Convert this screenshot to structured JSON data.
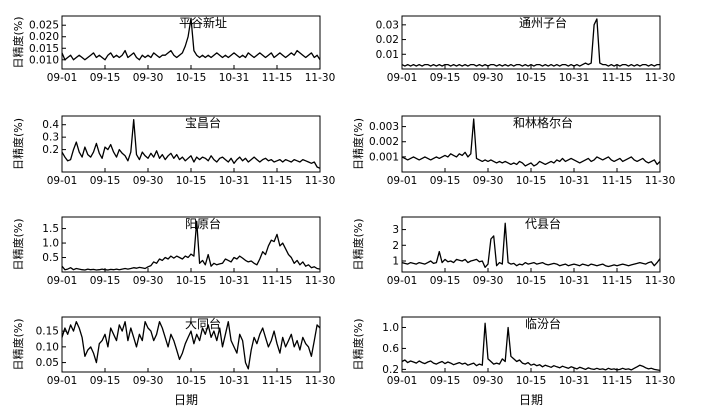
{
  "figure": {
    "xlabel": "日期"
  },
  "chart_data": [
    {
      "type": "line",
      "title": "平谷新址",
      "xlabel": "",
      "ylabel": "日精度(%)",
      "xticks": [
        "09-01",
        "09-15",
        "09-30",
        "10-15",
        "10-31",
        "11-15",
        "11-30"
      ],
      "yticks": [
        "0.010",
        "0.015",
        "0.020",
        "0.025"
      ],
      "ytick_values": [
        0.01,
        0.015,
        0.02,
        0.025
      ],
      "ylim": [
        0.006,
        0.029
      ],
      "x_start": "09-01",
      "x_end": "11-30",
      "values": [
        0.013,
        0.01,
        0.011,
        0.012,
        0.01,
        0.011,
        0.012,
        0.011,
        0.01,
        0.011,
        0.012,
        0.013,
        0.011,
        0.012,
        0.011,
        0.01,
        0.012,
        0.013,
        0.011,
        0.012,
        0.011,
        0.012,
        0.014,
        0.011,
        0.012,
        0.013,
        0.011,
        0.01,
        0.012,
        0.011,
        0.012,
        0.011,
        0.013,
        0.012,
        0.011,
        0.012,
        0.012,
        0.013,
        0.014,
        0.012,
        0.011,
        0.012,
        0.013,
        0.016,
        0.02,
        0.028,
        0.014,
        0.012,
        0.011,
        0.012,
        0.011,
        0.012,
        0.011,
        0.012,
        0.013,
        0.012,
        0.011,
        0.012,
        0.011,
        0.012,
        0.013,
        0.012,
        0.011,
        0.012,
        0.011,
        0.013,
        0.012,
        0.011,
        0.012,
        0.013,
        0.012,
        0.011,
        0.012,
        0.013,
        0.011,
        0.012,
        0.013,
        0.012,
        0.011,
        0.012,
        0.013,
        0.012,
        0.014,
        0.013,
        0.012,
        0.011,
        0.012,
        0.013,
        0.011,
        0.012,
        0.01
      ]
    },
    {
      "type": "line",
      "title": "通州子台",
      "xlabel": "",
      "ylabel": "",
      "xticks": [
        "09-01",
        "09-15",
        "09-30",
        "10-15",
        "10-31",
        "11-15",
        "11-30"
      ],
      "yticks": [
        "0.01",
        "0.02",
        "0.03"
      ],
      "ytick_values": [
        0.01,
        0.02,
        0.03
      ],
      "ylim": [
        0.0,
        0.036
      ],
      "x_start": "09-01",
      "x_end": "11-30",
      "values": [
        0.003,
        0.002,
        0.003,
        0.002,
        0.003,
        0.002,
        0.003,
        0.002,
        0.003,
        0.003,
        0.002,
        0.003,
        0.002,
        0.003,
        0.002,
        0.003,
        0.003,
        0.002,
        0.003,
        0.002,
        0.003,
        0.002,
        0.003,
        0.002,
        0.003,
        0.003,
        0.002,
        0.003,
        0.002,
        0.003,
        0.002,
        0.003,
        0.003,
        0.002,
        0.003,
        0.002,
        0.003,
        0.002,
        0.003,
        0.002,
        0.003,
        0.003,
        0.002,
        0.003,
        0.002,
        0.003,
        0.002,
        0.003,
        0.003,
        0.002,
        0.003,
        0.002,
        0.003,
        0.002,
        0.003,
        0.002,
        0.003,
        0.003,
        0.002,
        0.003,
        0.002,
        0.003,
        0.002,
        0.003,
        0.004,
        0.003,
        0.004,
        0.03,
        0.034,
        0.004,
        0.003,
        0.003,
        0.002,
        0.003,
        0.002,
        0.003,
        0.002,
        0.003,
        0.003,
        0.002,
        0.003,
        0.002,
        0.003,
        0.002,
        0.003,
        0.003,
        0.002,
        0.003,
        0.002,
        0.003,
        0.003
      ]
    },
    {
      "type": "line",
      "title": "宝昌台",
      "xlabel": "",
      "ylabel": "日精度(%)",
      "xticks": [
        "09-01",
        "09-15",
        "09-30",
        "10-15",
        "10-31",
        "11-15",
        "11-30"
      ],
      "yticks": [
        "0.2",
        "0.3",
        "0.4"
      ],
      "ytick_values": [
        0.2,
        0.3,
        0.4
      ],
      "ylim": [
        0.02,
        0.47
      ],
      "x_start": "09-01",
      "x_end": "11-30",
      "values": [
        0.18,
        0.14,
        0.11,
        0.12,
        0.2,
        0.26,
        0.18,
        0.14,
        0.22,
        0.16,
        0.14,
        0.18,
        0.25,
        0.17,
        0.13,
        0.22,
        0.2,
        0.24,
        0.18,
        0.14,
        0.2,
        0.17,
        0.15,
        0.11,
        0.18,
        0.44,
        0.16,
        0.12,
        0.18,
        0.15,
        0.13,
        0.17,
        0.14,
        0.19,
        0.13,
        0.16,
        0.12,
        0.15,
        0.17,
        0.13,
        0.16,
        0.12,
        0.14,
        0.11,
        0.13,
        0.15,
        0.1,
        0.14,
        0.12,
        0.14,
        0.13,
        0.11,
        0.15,
        0.12,
        0.1,
        0.13,
        0.14,
        0.12,
        0.1,
        0.13,
        0.09,
        0.12,
        0.14,
        0.11,
        0.13,
        0.1,
        0.12,
        0.14,
        0.12,
        0.1,
        0.12,
        0.13,
        0.11,
        0.12,
        0.1,
        0.11,
        0.12,
        0.1,
        0.12,
        0.11,
        0.1,
        0.12,
        0.11,
        0.1,
        0.12,
        0.11,
        0.1,
        0.09,
        0.1,
        0.06,
        0.05
      ]
    },
    {
      "type": "line",
      "title": "和林格尔台",
      "xlabel": "",
      "ylabel": "日精度(%)",
      "xticks": [
        "09-01",
        "09-15",
        "09-30",
        "10-15",
        "10-31",
        "11-15",
        "11-30"
      ],
      "yticks": [
        "0.001",
        "0.002",
        "0.003"
      ],
      "ytick_values": [
        0.001,
        0.002,
        0.003
      ],
      "ylim": [
        0.0,
        0.0037
      ],
      "x_start": "09-01",
      "x_end": "11-30",
      "values": [
        0.001,
        0.0009,
        0.0008,
        0.0009,
        0.001,
        0.0009,
        0.0008,
        0.0009,
        0.001,
        0.0009,
        0.0008,
        0.0009,
        0.001,
        0.0009,
        0.001,
        0.0011,
        0.001,
        0.0012,
        0.0011,
        0.001,
        0.0012,
        0.0011,
        0.0013,
        0.001,
        0.0012,
        0.0035,
        0.0009,
        0.0008,
        0.0007,
        0.0008,
        0.0007,
        0.0008,
        0.0007,
        0.0006,
        0.0007,
        0.0006,
        0.0007,
        0.0006,
        0.0005,
        0.0006,
        0.0005,
        0.0007,
        0.0006,
        0.0004,
        0.0005,
        0.0006,
        0.0004,
        0.0005,
        0.0007,
        0.0006,
        0.0005,
        0.0006,
        0.0007,
        0.0006,
        0.0008,
        0.0007,
        0.0009,
        0.0007,
        0.0008,
        0.0009,
        0.0008,
        0.0007,
        0.0006,
        0.0007,
        0.0008,
        0.0009,
        0.0007,
        0.0008,
        0.001,
        0.0009,
        0.0008,
        0.0009,
        0.001,
        0.0008,
        0.0007,
        0.0008,
        0.0009,
        0.0007,
        0.0008,
        0.0009,
        0.001,
        0.0008,
        0.0007,
        0.0008,
        0.0009,
        0.0007,
        0.0006,
        0.0007,
        0.0008,
        0.0005,
        0.0007
      ]
    },
    {
      "type": "line",
      "title": "阳原台",
      "xlabel": "",
      "ylabel": "日精度(%)",
      "xticks": [
        "09-01",
        "09-15",
        "09-30",
        "10-15",
        "10-31",
        "11-15",
        "11-30"
      ],
      "yticks": [
        "0.5",
        "1.0",
        "1.5"
      ],
      "ytick_values": [
        0.5,
        1.0,
        1.5
      ],
      "ylim": [
        0.0,
        1.9
      ],
      "x_start": "09-01",
      "x_end": "11-30",
      "values": [
        0.2,
        0.08,
        0.1,
        0.15,
        0.08,
        0.12,
        0.1,
        0.08,
        0.07,
        0.1,
        0.08,
        0.09,
        0.07,
        0.08,
        0.1,
        0.08,
        0.07,
        0.09,
        0.08,
        0.1,
        0.08,
        0.1,
        0.12,
        0.1,
        0.12,
        0.15,
        0.13,
        0.16,
        0.14,
        0.12,
        0.18,
        0.22,
        0.35,
        0.3,
        0.45,
        0.4,
        0.5,
        0.45,
        0.55,
        0.48,
        0.55,
        0.5,
        0.45,
        0.55,
        0.5,
        0.62,
        0.55,
        1.75,
        0.3,
        0.4,
        0.25,
        0.6,
        0.2,
        0.3,
        0.25,
        0.28,
        0.3,
        0.45,
        0.4,
        0.35,
        0.5,
        0.45,
        0.55,
        0.48,
        0.4,
        0.35,
        0.38,
        0.3,
        0.25,
        0.45,
        0.7,
        0.6,
        0.9,
        1.1,
        1.05,
        1.3,
        0.9,
        1.0,
        0.8,
        0.6,
        0.5,
        0.3,
        0.4,
        0.25,
        0.35,
        0.2,
        0.25,
        0.15,
        0.18,
        0.12,
        0.1
      ]
    },
    {
      "type": "line",
      "title": "代县台",
      "xlabel": "",
      "ylabel": "日精度(%)",
      "xticks": [
        "09-01",
        "09-15",
        "09-30",
        "10-15",
        "10-31",
        "11-15",
        "11-30"
      ],
      "yticks": [
        "1",
        "2",
        "3"
      ],
      "ytick_values": [
        1,
        2,
        3
      ],
      "ylim": [
        0.3,
        3.8
      ],
      "x_start": "09-01",
      "x_end": "11-30",
      "values": [
        0.9,
        0.85,
        0.8,
        0.9,
        0.85,
        0.8,
        0.9,
        0.85,
        0.8,
        0.9,
        1.0,
        0.85,
        0.9,
        1.6,
        0.9,
        1.1,
        0.95,
        1.0,
        0.9,
        1.1,
        1.05,
        1.0,
        1.1,
        0.9,
        1.0,
        1.05,
        1.1,
        0.95,
        1.0,
        0.6,
        0.8,
        2.4,
        2.6,
        0.7,
        0.9,
        0.8,
        3.4,
        0.9,
        0.8,
        0.85,
        0.7,
        0.8,
        0.75,
        0.9,
        0.8,
        0.85,
        0.9,
        0.8,
        0.85,
        0.9,
        0.8,
        0.75,
        0.8,
        0.85,
        0.8,
        0.7,
        0.75,
        0.8,
        0.7,
        0.75,
        0.8,
        0.75,
        0.7,
        0.8,
        0.75,
        0.7,
        0.8,
        0.75,
        0.7,
        0.75,
        0.8,
        0.7,
        0.65,
        0.7,
        0.75,
        0.7,
        0.75,
        0.8,
        0.75,
        0.7,
        0.75,
        0.8,
        0.85,
        0.9,
        0.85,
        0.8,
        0.9,
        0.95,
        0.7,
        0.9,
        1.15
      ]
    },
    {
      "type": "line",
      "title": "大同台",
      "xlabel": "",
      "ylabel": "日精度(%)",
      "xticks": [
        "09-01",
        "09-15",
        "09-30",
        "10-15",
        "10-31",
        "11-15",
        "11-30"
      ],
      "yticks": [
        "0.05",
        "0.10",
        "0.15"
      ],
      "ytick_values": [
        0.05,
        0.1,
        0.15
      ],
      "ylim": [
        0.02,
        0.195
      ],
      "x_start": "09-01",
      "x_end": "11-30",
      "values": [
        0.13,
        0.16,
        0.14,
        0.17,
        0.15,
        0.18,
        0.16,
        0.13,
        0.07,
        0.09,
        0.1,
        0.08,
        0.05,
        0.11,
        0.12,
        0.14,
        0.1,
        0.16,
        0.14,
        0.12,
        0.17,
        0.15,
        0.18,
        0.12,
        0.16,
        0.13,
        0.1,
        0.14,
        0.12,
        0.18,
        0.16,
        0.15,
        0.12,
        0.14,
        0.18,
        0.16,
        0.13,
        0.1,
        0.14,
        0.12,
        0.09,
        0.06,
        0.08,
        0.11,
        0.13,
        0.15,
        0.11,
        0.14,
        0.12,
        0.16,
        0.14,
        0.17,
        0.13,
        0.15,
        0.12,
        0.16,
        0.1,
        0.14,
        0.18,
        0.12,
        0.1,
        0.08,
        0.14,
        0.12,
        0.05,
        0.03,
        0.09,
        0.13,
        0.11,
        0.14,
        0.16,
        0.13,
        0.1,
        0.12,
        0.15,
        0.11,
        0.08,
        0.13,
        0.1,
        0.12,
        0.14,
        0.1,
        0.12,
        0.09,
        0.13,
        0.11,
        0.1,
        0.07,
        0.12,
        0.17,
        0.16
      ]
    },
    {
      "type": "line",
      "title": "临汾台",
      "xlabel": "",
      "ylabel": "日精度(%)",
      "xticks": [
        "09-01",
        "09-15",
        "09-30",
        "10-15",
        "10-31",
        "11-15",
        "11-30"
      ],
      "yticks": [
        "0.2",
        "0.6",
        "1.0"
      ],
      "ytick_values": [
        0.2,
        0.6,
        1.0
      ],
      "ylim": [
        0.15,
        1.2
      ],
      "x_start": "09-01",
      "x_end": "11-30",
      "values": [
        0.35,
        0.38,
        0.33,
        0.36,
        0.34,
        0.32,
        0.36,
        0.33,
        0.31,
        0.34,
        0.36,
        0.32,
        0.3,
        0.33,
        0.35,
        0.31,
        0.34,
        0.32,
        0.29,
        0.31,
        0.33,
        0.3,
        0.32,
        0.28,
        0.3,
        0.32,
        0.27,
        0.3,
        0.28,
        1.08,
        0.4,
        0.35,
        0.3,
        0.32,
        0.3,
        0.4,
        0.35,
        1.0,
        0.45,
        0.4,
        0.35,
        0.38,
        0.32,
        0.3,
        0.33,
        0.28,
        0.3,
        0.27,
        0.29,
        0.25,
        0.28,
        0.26,
        0.24,
        0.27,
        0.25,
        0.23,
        0.26,
        0.24,
        0.22,
        0.25,
        0.23,
        0.21,
        0.24,
        0.22,
        0.2,
        0.23,
        0.21,
        0.2,
        0.22,
        0.2,
        0.21,
        0.19,
        0.22,
        0.2,
        0.21,
        0.19,
        0.2,
        0.22,
        0.2,
        0.21,
        0.19,
        0.22,
        0.25,
        0.28,
        0.26,
        0.23,
        0.21,
        0.22,
        0.2,
        0.19,
        0.18
      ]
    }
  ]
}
